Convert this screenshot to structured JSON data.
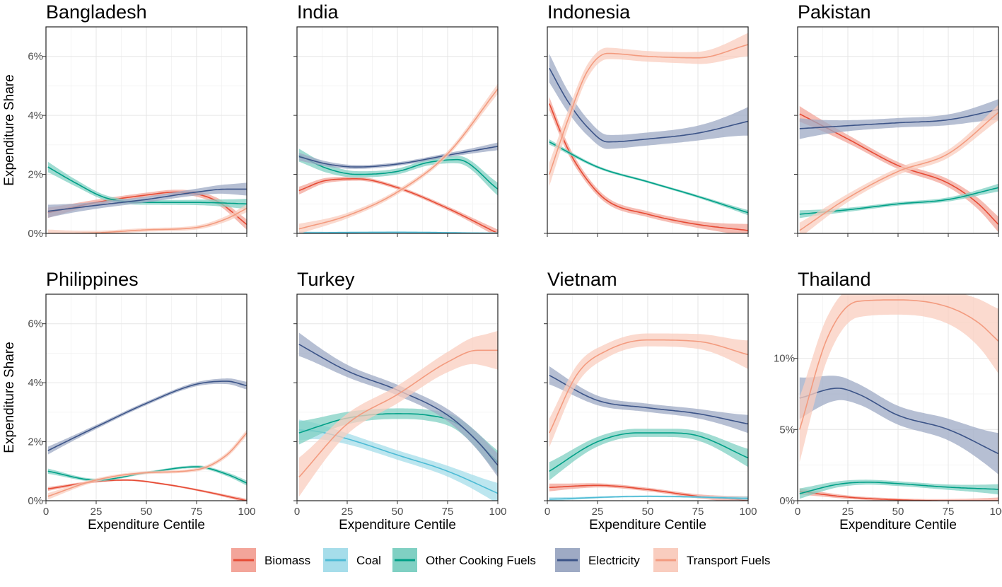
{
  "colors": {
    "Biomass": "#e64b35",
    "Coal": "#4dbbd5",
    "Other Cooking Fuels": "#00a087",
    "Electricity": "#3c5488",
    "Transport Fuels": "#f39b7f"
  },
  "legend": {
    "items": [
      "Biomass",
      "Coal",
      "Other Cooking Fuels",
      "Electricity",
      "Transport Fuels"
    ]
  },
  "axes": {
    "y_title": "Expenditure Share",
    "x_title": "Expenditure Centile",
    "x_ticks": [
      "0",
      "25",
      "50",
      "75",
      "100"
    ]
  },
  "chart_data": [
    {
      "type": "line",
      "title": "Bangladesh",
      "xlim": [
        0,
        100
      ],
      "ylim": [
        0,
        7
      ],
      "yticks": [
        0,
        2,
        4,
        6
      ],
      "ytick_labels": [
        "0%",
        "2%",
        "4%",
        "6%"
      ],
      "series": [
        {
          "name": "Biomass",
          "x": [
            1,
            25,
            50,
            65,
            85,
            100
          ],
          "y": [
            0.7,
            1.05,
            1.3,
            1.4,
            1.1,
            0.3
          ],
          "band": 0.08
        },
        {
          "name": "Other Cooking Fuels",
          "x": [
            1,
            15,
            30,
            50,
            75,
            100
          ],
          "y": [
            2.25,
            1.7,
            1.2,
            1.05,
            1.05,
            1.0
          ],
          "band": 0.08
        },
        {
          "name": "Electricity",
          "x": [
            1,
            25,
            50,
            75,
            90,
            100
          ],
          "y": [
            0.75,
            0.95,
            1.15,
            1.4,
            1.5,
            1.5
          ],
          "band": 0.1
        },
        {
          "name": "Transport Fuels",
          "x": [
            1,
            25,
            50,
            75,
            90,
            100
          ],
          "y": [
            0.0,
            0.02,
            0.12,
            0.2,
            0.5,
            0.85
          ],
          "band": 0.06
        }
      ]
    },
    {
      "type": "line",
      "title": "India",
      "xlim": [
        0,
        100
      ],
      "ylim": [
        0,
        7
      ],
      "yticks": [
        0,
        2,
        4,
        6
      ],
      "ytick_labels": [
        "",
        "",
        "",
        ""
      ],
      "series": [
        {
          "name": "Biomass",
          "x": [
            1,
            15,
            30,
            50,
            75,
            100
          ],
          "y": [
            1.45,
            1.8,
            1.85,
            1.55,
            0.85,
            0.0
          ],
          "band": 0.06
        },
        {
          "name": "Coal",
          "x": [
            1,
            50,
            100
          ],
          "y": [
            0.02,
            0.04,
            0.0
          ],
          "band": 0.02
        },
        {
          "name": "Other Cooking Fuels",
          "x": [
            1,
            15,
            30,
            50,
            65,
            80,
            100
          ],
          "y": [
            2.65,
            2.2,
            2.0,
            2.1,
            2.4,
            2.5,
            1.5
          ],
          "band": 0.1
        },
        {
          "name": "Electricity",
          "x": [
            1,
            15,
            30,
            50,
            75,
            100
          ],
          "y": [
            2.6,
            2.35,
            2.25,
            2.35,
            2.65,
            2.95
          ],
          "band": 0.06
        },
        {
          "name": "Transport Fuels",
          "x": [
            1,
            25,
            50,
            75,
            100
          ],
          "y": [
            0.15,
            0.6,
            1.4,
            2.7,
            4.9
          ],
          "band": 0.08
        }
      ]
    },
    {
      "type": "line",
      "title": "Indonesia",
      "xlim": [
        0,
        100
      ],
      "ylim": [
        0,
        7
      ],
      "yticks": [
        0,
        2,
        4,
        6
      ],
      "ytick_labels": [
        "",
        "",
        "",
        ""
      ],
      "series": [
        {
          "name": "Biomass",
          "x": [
            1,
            10,
            20,
            30,
            50,
            75,
            100
          ],
          "y": [
            4.4,
            2.9,
            1.8,
            1.1,
            0.65,
            0.3,
            0.1
          ],
          "band": 0.1
        },
        {
          "name": "Other Cooking Fuels",
          "x": [
            1,
            25,
            50,
            75,
            100
          ],
          "y": [
            3.1,
            2.25,
            1.75,
            1.25,
            0.7
          ],
          "band": 0.04
        },
        {
          "name": "Electricity",
          "x": [
            1,
            10,
            20,
            30,
            50,
            75,
            100
          ],
          "y": [
            5.6,
            4.5,
            3.6,
            3.1,
            3.2,
            3.4,
            3.8
          ],
          "band": 0.22
        },
        {
          "name": "Transport Fuels",
          "x": [
            1,
            10,
            20,
            30,
            50,
            75,
            100
          ],
          "y": [
            2.0,
            3.8,
            5.5,
            6.1,
            6.0,
            5.95,
            6.4
          ],
          "band": 0.18
        }
      ]
    },
    {
      "type": "line",
      "title": "Pakistan",
      "xlim": [
        0,
        100
      ],
      "ylim": [
        0,
        7
      ],
      "yticks": [
        0,
        2,
        4,
        6
      ],
      "ytick_labels": [
        "",
        "",
        "",
        ""
      ],
      "series": [
        {
          "name": "Biomass",
          "x": [
            1,
            25,
            50,
            75,
            90,
            100
          ],
          "y": [
            4.05,
            3.2,
            2.3,
            1.7,
            1.0,
            0.3
          ],
          "band": 0.12
        },
        {
          "name": "Other Cooking Fuels",
          "x": [
            1,
            25,
            50,
            75,
            100
          ],
          "y": [
            0.65,
            0.8,
            1.0,
            1.15,
            1.55
          ],
          "band": 0.06
        },
        {
          "name": "Electricity",
          "x": [
            1,
            25,
            50,
            75,
            100
          ],
          "y": [
            3.55,
            3.65,
            3.75,
            3.85,
            4.2
          ],
          "band": 0.16
        },
        {
          "name": "Transport Fuels",
          "x": [
            1,
            25,
            50,
            75,
            100
          ],
          "y": [
            0.1,
            1.2,
            2.1,
            2.7,
            4.1
          ],
          "band": 0.12
        }
      ]
    },
    {
      "type": "line",
      "title": "Philippines",
      "xlim": [
        0,
        100
      ],
      "ylim": [
        0,
        7
      ],
      "yticks": [
        0,
        2,
        4,
        6
      ],
      "ytick_labels": [
        "0%",
        "2%",
        "4%",
        "6%"
      ],
      "series": [
        {
          "name": "Biomass",
          "x": [
            1,
            25,
            40,
            60,
            80,
            100
          ],
          "y": [
            0.4,
            0.65,
            0.7,
            0.55,
            0.3,
            0.0
          ],
          "band": 0.03
        },
        {
          "name": "Other Cooking Fuels",
          "x": [
            1,
            25,
            50,
            75,
            90,
            100
          ],
          "y": [
            1.0,
            0.7,
            0.95,
            1.15,
            0.9,
            0.6
          ],
          "band": 0.04
        },
        {
          "name": "Electricity",
          "x": [
            1,
            25,
            50,
            75,
            90,
            100
          ],
          "y": [
            1.7,
            2.5,
            3.3,
            3.95,
            4.05,
            3.9
          ],
          "band": 0.06
        },
        {
          "name": "Transport Fuels",
          "x": [
            1,
            25,
            50,
            75,
            90,
            100
          ],
          "y": [
            0.15,
            0.7,
            0.95,
            1.05,
            1.55,
            2.3
          ],
          "band": 0.05
        }
      ]
    },
    {
      "type": "line",
      "title": "Turkey",
      "xlim": [
        0,
        100
      ],
      "ylim": [
        0,
        7
      ],
      "yticks": [
        0,
        2,
        4,
        6
      ],
      "ytick_labels": [
        "",
        "",
        "",
        ""
      ],
      "series": [
        {
          "name": "Coal",
          "x": [
            1,
            10,
            25,
            50,
            75,
            100
          ],
          "y": [
            2.4,
            2.35,
            2.1,
            1.55,
            1.0,
            0.25
          ],
          "band": 0.16
        },
        {
          "name": "Other Cooking Fuels",
          "x": [
            1,
            25,
            50,
            65,
            80,
            100
          ],
          "y": [
            2.3,
            2.8,
            2.95,
            2.9,
            2.6,
            1.3
          ],
          "band": 0.18
        },
        {
          "name": "Electricity",
          "x": [
            1,
            25,
            50,
            75,
            90,
            100
          ],
          "y": [
            5.3,
            4.4,
            3.75,
            2.9,
            2.0,
            1.2
          ],
          "band": 0.18
        },
        {
          "name": "Transport Fuels",
          "x": [
            1,
            25,
            50,
            75,
            90,
            100
          ],
          "y": [
            0.8,
            2.6,
            3.6,
            4.7,
            5.1,
            5.1
          ],
          "band": 0.3
        }
      ]
    },
    {
      "type": "line",
      "title": "Vietnam",
      "xlim": [
        0,
        100
      ],
      "ylim": [
        0,
        7
      ],
      "yticks": [
        0,
        2,
        4,
        6
      ],
      "ytick_labels": [
        "",
        "",
        "",
        ""
      ],
      "series": [
        {
          "name": "Biomass",
          "x": [
            1,
            25,
            50,
            75,
            100
          ],
          "y": [
            0.45,
            0.52,
            0.38,
            0.15,
            0.02
          ],
          "band": 0.06
        },
        {
          "name": "Coal",
          "x": [
            1,
            50,
            100
          ],
          "y": [
            0.05,
            0.15,
            0.08
          ],
          "band": 0.03
        },
        {
          "name": "Other Cooking Fuels",
          "x": [
            1,
            25,
            45,
            60,
            75,
            100
          ],
          "y": [
            1.0,
            2.0,
            2.3,
            2.3,
            2.2,
            1.45
          ],
          "band": 0.14
        },
        {
          "name": "Electricity",
          "x": [
            1,
            25,
            50,
            75,
            100
          ],
          "y": [
            4.25,
            3.4,
            3.15,
            2.95,
            2.6
          ],
          "band": 0.14
        },
        {
          "name": "Transport Fuels",
          "x": [
            1,
            15,
            30,
            50,
            75,
            100
          ],
          "y": [
            2.3,
            4.3,
            5.1,
            5.45,
            5.4,
            4.95
          ],
          "band": 0.22
        }
      ]
    },
    {
      "type": "line",
      "title": "Thailand",
      "xlim": [
        0,
        100
      ],
      "ylim": [
        0,
        14.5
      ],
      "yticks": [
        0,
        5,
        10
      ],
      "ytick_labels": [
        "0%",
        "5%",
        "10%"
      ],
      "series": [
        {
          "name": "Biomass",
          "x": [
            1,
            25,
            50,
            75,
            100
          ],
          "y": [
            0.65,
            0.25,
            0.06,
            0.0,
            0.0
          ],
          "band": 0.05
        },
        {
          "name": "Other Cooking Fuels",
          "x": [
            1,
            20,
            35,
            50,
            75,
            100
          ],
          "y": [
            0.5,
            1.15,
            1.3,
            1.2,
            0.95,
            0.8
          ],
          "band": 0.08
        },
        {
          "name": "Electricity",
          "x": [
            1,
            20,
            30,
            50,
            75,
            100
          ],
          "y": [
            7.2,
            7.9,
            7.5,
            6.0,
            5.0,
            3.3
          ],
          "band": 0.32
        },
        {
          "name": "Transport Fuels",
          "x": [
            1,
            15,
            30,
            50,
            75,
            90,
            100
          ],
          "y": [
            5.0,
            11.5,
            14.0,
            14.1,
            13.6,
            12.5,
            11.2
          ],
          "band": 0.5
        }
      ]
    }
  ]
}
